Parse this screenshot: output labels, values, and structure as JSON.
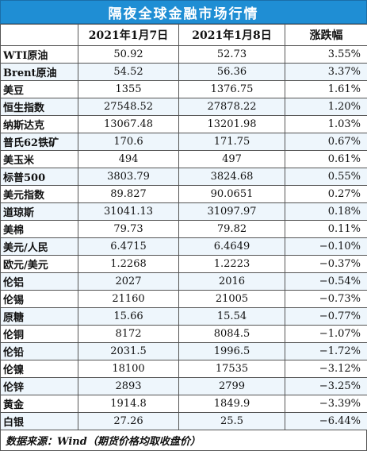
{
  "title": "隔夜全球金融市场行情",
  "headers": [
    "",
    "2021年1月7日",
    "2021年1月8日",
    "涨跌幅"
  ],
  "rows": [
    {
      "name": "WTI原油",
      "d1": "50.92",
      "d2": "52.73",
      "chg": "3.55%"
    },
    {
      "name": "Brent原油",
      "d1": "54.52",
      "d2": "56.36",
      "chg": "3.37%"
    },
    {
      "name": "美豆",
      "d1": "1355",
      "d2": "1376.75",
      "chg": "1.61%"
    },
    {
      "name": "恒生指数",
      "d1": "27548.52",
      "d2": "27878.22",
      "chg": "1.20%"
    },
    {
      "name": "纳斯达克",
      "d1": "13067.48",
      "d2": "13201.98",
      "chg": "1.03%"
    },
    {
      "name": "普氏62铁矿",
      "d1": "170.6",
      "d2": "171.75",
      "chg": "0.67%"
    },
    {
      "name": "美玉米",
      "d1": "494",
      "d2": "497",
      "chg": "0.61%"
    },
    {
      "name": "标普500",
      "d1": "3803.79",
      "d2": "3824.68",
      "chg": "0.55%"
    },
    {
      "name": "美元指数",
      "d1": "89.827",
      "d2": "90.0651",
      "chg": "0.27%"
    },
    {
      "name": "道琼斯",
      "d1": "31041.13",
      "d2": "31097.97",
      "chg": "0.18%"
    },
    {
      "name": "美棉",
      "d1": "79.73",
      "d2": "79.82",
      "chg": "0.11%"
    },
    {
      "name": "美元/人民",
      "d1": "6.4715",
      "d2": "6.4649",
      "chg": "−0.10%"
    },
    {
      "name": "欧元/美元",
      "d1": "1.2268",
      "d2": "1.2223",
      "chg": "−0.37%"
    },
    {
      "name": "伦铝",
      "d1": "2027",
      "d2": "2016",
      "chg": "−0.54%"
    },
    {
      "name": "伦锡",
      "d1": "21160",
      "d2": "21005",
      "chg": "−0.73%"
    },
    {
      "name": "原糖",
      "d1": "15.66",
      "d2": "15.54",
      "chg": "−0.77%"
    },
    {
      "name": "伦铜",
      "d1": "8172",
      "d2": "8084.5",
      "chg": "−1.07%"
    },
    {
      "name": "伦铅",
      "d1": "2031.5",
      "d2": "1996.5",
      "chg": "−1.72%"
    },
    {
      "name": "伦镍",
      "d1": "18100",
      "d2": "17535",
      "chg": "−3.12%"
    },
    {
      "name": "伦锌",
      "d1": "2893",
      "d2": "2799",
      "chg": "−3.25%"
    },
    {
      "name": "黄金",
      "d1": "1914.8",
      "d2": "1849.9",
      "chg": "−3.39%"
    },
    {
      "name": "白银",
      "d1": "27.26",
      "d2": "25.5",
      "chg": "−6.44%"
    }
  ],
  "footer": "数据来源：Wind（期货价格均取收盘价）",
  "colors": {
    "title_bg": "#1f8ed4",
    "title_text": "#ffffff",
    "stripe": "#eef6fc"
  }
}
